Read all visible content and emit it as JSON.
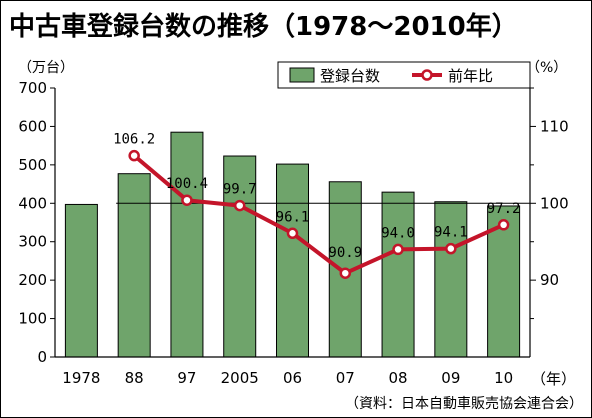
{
  "title": "中古車登録台数の推移（1978～2010年）",
  "colors": {
    "bar_fill": "#6fa46b",
    "bar_stroke": "#000000",
    "line": "#c4152a",
    "marker_fill": "#ffffff"
  },
  "chart_data": {
    "type": "bar",
    "categories": [
      "1978",
      "88",
      "97",
      "2005",
      "06",
      "07",
      "08",
      "09",
      "10"
    ],
    "x_unit": "（年）",
    "y_unit": "（万台）",
    "y2_unit": "（%）",
    "ylim": [
      0,
      700
    ],
    "yticks": [
      "0",
      "100",
      "200",
      "300",
      "400",
      "500",
      "600",
      "700"
    ],
    "y2lim": [
      80,
      115
    ],
    "y2ticks": [
      "90",
      "100",
      "110"
    ],
    "series": [
      {
        "name": "登録台数",
        "type": "bar",
        "values": [
          397,
          477,
          585,
          523,
          502,
          456,
          429,
          404,
          393
        ]
      },
      {
        "name": "前年比",
        "type": "line",
        "axis": "right",
        "values": [
          null,
          106.2,
          100.4,
          99.7,
          96.1,
          90.9,
          94.0,
          94.1,
          97.2
        ],
        "labels": [
          "",
          "106.2",
          "100.4",
          "99.7",
          "96.1",
          "90.9",
          "94.0",
          "94.1",
          "97.2"
        ]
      }
    ],
    "reference_line": 100
  },
  "source": "（資料：日本自動車販売協会連合会）"
}
